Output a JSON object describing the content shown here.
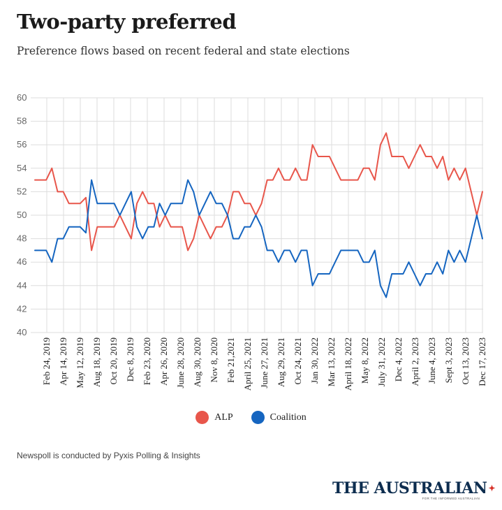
{
  "header": {
    "title": "Two-party preferred",
    "subtitle": "Preference flows based on recent federal and state elections"
  },
  "legend": {
    "items": [
      {
        "label": "ALP",
        "color": "#e8564b"
      },
      {
        "label": "Coalition",
        "color": "#1565c0"
      }
    ]
  },
  "footer": {
    "source": "Newspoll is conducted by Pyxis Polling & Insights",
    "logo": "THE AUSTRALIAN",
    "logo_tagline": "FOR THE INFORMED AUSTRALIAN"
  },
  "chart_data": {
    "type": "line",
    "ylim": [
      40,
      60
    ],
    "yticks": [
      40,
      42,
      44,
      46,
      48,
      50,
      52,
      54,
      56,
      58,
      60
    ],
    "grid": true,
    "legend_position": "bottom",
    "xtick_labels": [
      "Feb 24, 2019",
      "Apr 14, 2019",
      "May 12, 2019",
      "Aug 18, 2019",
      "Oct 20, 2019",
      "Dec 8, 2019",
      "Feb 23, 2020",
      "Apr 26, 2020",
      "June 28, 2020",
      "Aug 30, 2020",
      "Nov 8, 2020",
      "Feb 21,2021",
      "April 25, 2021",
      "June 27, 2021",
      "Aug 29, 2021",
      "Oct 24, 2021",
      "Jan 30, 2022",
      "Mar 13, 2022",
      "April 18, 2022",
      "May 8, 2022",
      "July 31, 2022",
      "Dec 4, 2022",
      "April 2, 2023",
      "June 4, 2023",
      "Sept 3, 2023",
      "Oct 13, 2023",
      "Dec 17, 2023"
    ],
    "series": [
      {
        "name": "ALP",
        "color": "#e8564b",
        "values": [
          53,
          53,
          53,
          54,
          52,
          52,
          51,
          51,
          51,
          51.5,
          47,
          49,
          49,
          49,
          49,
          50,
          49,
          48,
          51,
          52,
          51,
          51,
          49,
          50,
          49,
          49,
          49,
          47,
          48,
          50,
          49,
          48,
          49,
          49,
          50,
          52,
          52,
          51,
          51,
          50,
          51,
          53,
          53,
          54,
          53,
          53,
          54,
          53,
          53,
          56,
          55,
          55,
          55,
          54,
          53,
          53,
          53,
          53,
          54,
          54,
          53,
          56,
          57,
          55,
          55,
          55,
          54,
          55,
          56,
          55,
          55,
          54,
          55,
          53,
          54,
          53,
          54,
          52,
          50,
          52
        ]
      },
      {
        "name": "Coalition",
        "color": "#1565c0",
        "values": [
          47,
          47,
          47,
          46,
          48,
          48,
          49,
          49,
          49,
          48.5,
          53,
          51,
          51,
          51,
          51,
          50,
          51,
          52,
          49,
          48,
          49,
          49,
          51,
          50,
          51,
          51,
          51,
          53,
          52,
          50,
          51,
          52,
          51,
          51,
          50,
          48,
          48,
          49,
          49,
          50,
          49,
          47,
          47,
          46,
          47,
          47,
          46,
          47,
          47,
          44,
          45,
          45,
          45,
          46,
          47,
          47,
          47,
          47,
          46,
          46,
          47,
          44,
          43,
          45,
          45,
          45,
          46,
          45,
          44,
          45,
          45,
          46,
          45,
          47,
          46,
          47,
          46,
          48,
          50,
          48
        ]
      }
    ]
  }
}
